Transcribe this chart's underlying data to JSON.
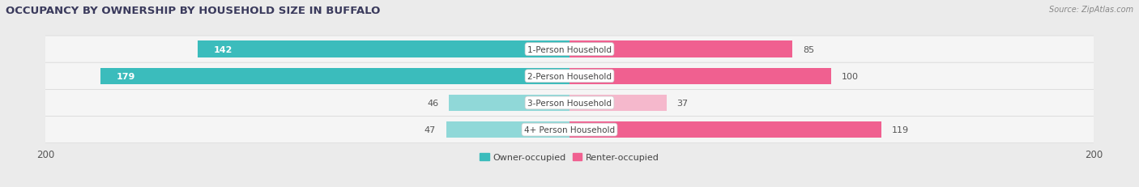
{
  "title": "OCCUPANCY BY OWNERSHIP BY HOUSEHOLD SIZE IN BUFFALO",
  "source": "Source: ZipAtlas.com",
  "categories": [
    "1-Person Household",
    "2-Person Household",
    "3-Person Household",
    "4+ Person Household"
  ],
  "owner_values": [
    142,
    179,
    46,
    47
  ],
  "renter_values": [
    85,
    100,
    37,
    119
  ],
  "x_max": 200,
  "owner_color_dark": "#3bbcbc",
  "renter_color_dark": "#f06090",
  "owner_color_light": "#90d8d8",
  "renter_color_light": "#f5b8cc",
  "bg_color": "#ebebeb",
  "row_bg": "#f8f8f8",
  "row_bg_alt": "#ffffff",
  "bar_height": 0.62,
  "title_fontsize": 9.5,
  "label_fontsize": 8,
  "tick_fontsize": 8.5,
  "legend_fontsize": 8,
  "title_color": "#3a3a5c",
  "source_color": "#888888",
  "value_color_light": "#555555",
  "value_color_dark": "#ffffff"
}
